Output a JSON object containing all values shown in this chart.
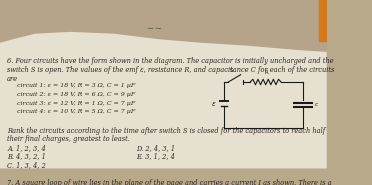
{
  "bg_color": "#b8a98a",
  "paper_color": "#ede8dc",
  "text_color": "#2a2520",
  "title_line1": "6. Four circuits have the form shown in the diagram. The capacitor is initially uncharged and the",
  "title_line2": "switch S is open. The values of the emf ε, resistance R, and capacitance C for each of the circuits",
  "title_line3": "are",
  "circuits": [
    "     circuit 1: ε = 18 V, R = 3 Ω, C = 1 μF",
    "     circuit 2: ε = 18 V, R = 6 Ω, C = 9 μF",
    "     circuit 3: ε = 12 V, R = 1 Ω, C = 7 μF",
    "     circuit 4: ε = 10 V, R = 5 Ω, C = 7 μF"
  ],
  "rank_line1": "Rank the circuits according to the time after switch S is closed for the capacitors to reach half",
  "rank_line2": "their final charges, greatest to least.",
  "ans_col1": [
    "A. 1, 2, 3, 4",
    "B. 4, 3, 2, 1",
    "C. 1, 3, 4, 2"
  ],
  "ans_col2": [
    "D. 2, 4, 3, 1",
    "E. 3, 1, 2, 4"
  ],
  "q7_line": "7. A square loop of wire lies in the plane of the page and carries a current I as shown. There is a",
  "font_size": 4.8,
  "circuit_color": "#1a1a1a"
}
